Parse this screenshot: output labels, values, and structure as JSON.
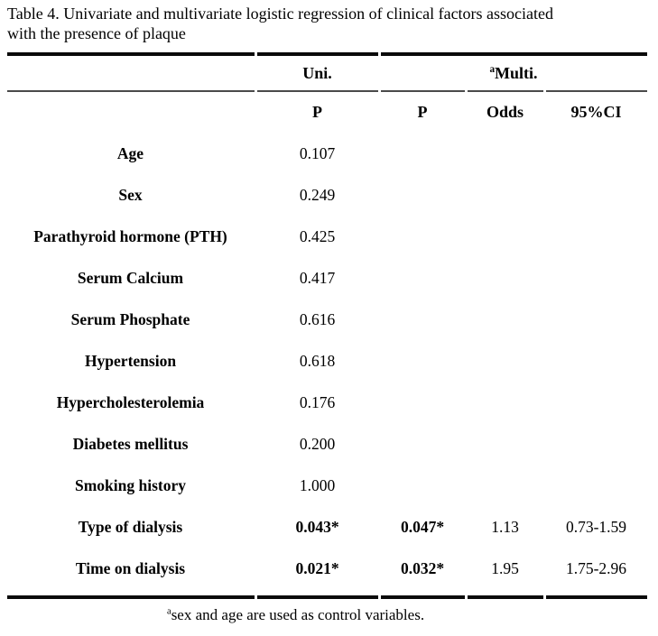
{
  "title": {
    "line1": "Table 4. Univariate and multivariate logistic regression of clinical factors associated",
    "line2": "with the presence of plaque"
  },
  "table": {
    "group_headers": {
      "uni": "Uni.",
      "multi_superscript": "a",
      "multi": "Multi."
    },
    "column_headers": {
      "uni_p": "P",
      "multi_p": "P",
      "odds": "Odds",
      "ci": "95%CI"
    },
    "rows": [
      {
        "label": "Age",
        "uni_p": "0.107",
        "multi_p": "",
        "odds": "",
        "ci": ""
      },
      {
        "label": "Sex",
        "uni_p": "0.249",
        "multi_p": "",
        "odds": "",
        "ci": ""
      },
      {
        "label": "Parathyroid hormone (PTH)",
        "uni_p": "0.425",
        "multi_p": "",
        "odds": "",
        "ci": ""
      },
      {
        "label": "Serum Calcium",
        "uni_p": "0.417",
        "multi_p": "",
        "odds": "",
        "ci": ""
      },
      {
        "label": "Serum Phosphate",
        "uni_p": "0.616",
        "multi_p": "",
        "odds": "",
        "ci": ""
      },
      {
        "label": "Hypertension",
        "uni_p": "0.618",
        "multi_p": "",
        "odds": "",
        "ci": ""
      },
      {
        "label": "Hypercholesterolemia",
        "uni_p": "0.176",
        "multi_p": "",
        "odds": "",
        "ci": ""
      },
      {
        "label": "Diabetes mellitus",
        "uni_p": "0.200",
        "multi_p": "",
        "odds": "",
        "ci": ""
      },
      {
        "label": "Smoking history",
        "uni_p": "1.000",
        "multi_p": "",
        "odds": "",
        "ci": ""
      },
      {
        "label": "Type of dialysis",
        "uni_p": "0.043*",
        "multi_p": "0.047*",
        "odds": "1.13",
        "ci": "0.73-1.59"
      },
      {
        "label": "Time on dialysis",
        "uni_p": "0.021*",
        "multi_p": "0.032*",
        "odds": "1.95",
        "ci": "1.75-2.96"
      }
    ]
  },
  "footnote": {
    "superscript": "a",
    "text": "sex and age are used as control variables."
  },
  "colors": {
    "background": "#ffffff",
    "text": "#000000",
    "thick_rule": "#0a0a0a",
    "thin_rule": "#4a4a4a"
  }
}
